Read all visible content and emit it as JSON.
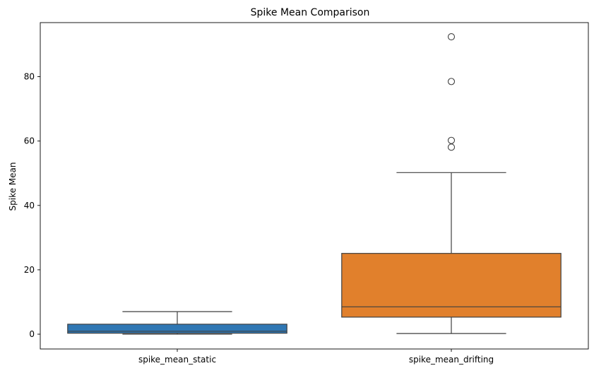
{
  "chart_data": {
    "type": "box",
    "title": "Spike Mean Comparison",
    "xlabel": "",
    "ylabel": "Spike Mean",
    "ylim": [
      -4.6,
      96.8
    ],
    "yticks": [
      0,
      20,
      40,
      60,
      80
    ],
    "grid": false,
    "categories": [
      "spike_mean_static",
      "spike_mean_drifting"
    ],
    "boxes": [
      {
        "category": "spike_mean_static",
        "color": "#2f77b4",
        "whisker_low": 0.0,
        "q1": 0.3,
        "median": 0.9,
        "q3": 3.1,
        "whisker_high": 7.0,
        "outliers": []
      },
      {
        "category": "spike_mean_drifting",
        "color": "#e1802c",
        "whisker_low": 0.2,
        "q1": 5.3,
        "median": 8.5,
        "q3": 25.1,
        "whisker_high": 50.2,
        "outliers": [
          92.4,
          78.5,
          60.2,
          58.1
        ]
      }
    ]
  }
}
